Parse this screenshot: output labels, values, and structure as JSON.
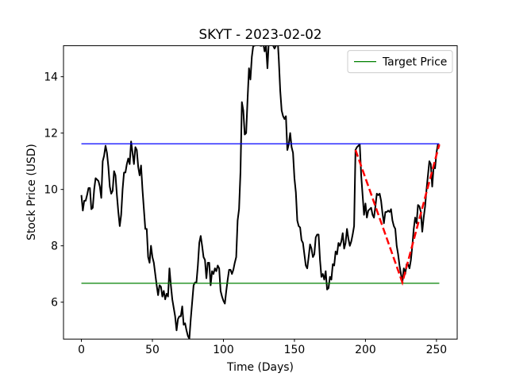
{
  "chart_data": {
    "type": "line",
    "title": "SKYT - 2023-02-02",
    "xlabel": "Time (Days)",
    "ylabel": "Stock Price (USD)",
    "x": [
      0,
      1,
      2,
      3,
      4,
      5,
      6,
      7,
      8,
      9,
      10,
      11,
      12,
      13,
      14,
      15,
      16,
      17,
      18,
      19,
      20,
      21,
      22,
      23,
      24,
      25,
      26,
      27,
      28,
      29,
      30,
      31,
      32,
      33,
      34,
      35,
      36,
      37,
      38,
      39,
      40,
      41,
      42,
      43,
      44,
      45,
      46,
      47,
      48,
      49,
      50,
      51,
      52,
      53,
      54,
      55,
      56,
      57,
      58,
      59,
      60,
      61,
      62,
      63,
      64,
      65,
      66,
      67,
      68,
      69,
      70,
      71,
      72,
      73,
      74,
      75,
      76,
      77,
      78,
      79,
      80,
      81,
      82,
      83,
      84,
      85,
      86,
      87,
      88,
      89,
      90,
      91,
      92,
      93,
      94,
      95,
      96,
      97,
      98,
      99,
      100,
      101,
      102,
      103,
      104,
      105,
      106,
      107,
      108,
      109,
      110,
      111,
      112,
      113,
      114,
      115,
      116,
      117,
      118,
      119,
      120,
      121,
      122,
      123,
      124,
      125,
      126,
      127,
      128,
      129,
      130,
      131,
      132,
      133,
      134,
      135,
      136,
      137,
      138,
      139,
      140,
      141,
      142,
      143,
      144,
      145,
      146,
      147,
      148,
      149,
      150,
      151,
      152,
      153,
      154,
      155,
      156,
      157,
      158,
      159,
      160,
      161,
      162,
      163,
      164,
      165,
      166,
      167,
      168,
      169,
      170,
      171,
      172,
      173,
      174,
      175,
      176,
      177,
      178,
      179,
      180,
      181,
      182,
      183,
      184,
      185,
      186,
      187,
      188,
      189,
      190,
      191,
      192,
      193,
      194,
      195,
      196,
      197,
      198,
      199,
      200,
      201,
      202,
      203,
      204,
      205,
      206,
      207,
      208,
      209,
      210,
      211,
      212,
      213,
      214,
      215,
      216,
      217,
      218,
      219,
      220,
      221,
      222,
      223,
      224,
      225,
      226,
      227,
      228,
      229,
      230,
      231,
      232,
      233,
      234,
      235,
      236,
      237,
      238,
      239,
      240,
      241,
      242,
      243,
      244,
      245,
      246,
      247,
      248,
      249,
      250,
      251,
      252
    ],
    "series": [
      {
        "color": "#000000",
        "values": [
          9.8,
          9.25,
          9.6,
          9.6,
          9.8,
          10.05,
          10.05,
          9.3,
          9.35,
          10.0,
          10.4,
          10.35,
          10.3,
          10.1,
          9.7,
          11.0,
          11.2,
          11.55,
          11.3,
          10.8,
          10.1,
          9.85,
          9.95,
          10.65,
          10.5,
          9.8,
          9.2,
          8.7,
          9.1,
          10.0,
          10.6,
          10.6,
          10.9,
          11.1,
          10.9,
          11.7,
          11.3,
          10.9,
          11.5,
          11.4,
          10.8,
          10.5,
          10.85,
          10.0,
          9.3,
          8.6,
          8.6,
          7.6,
          7.4,
          8.0,
          7.6,
          7.4,
          7.0,
          6.6,
          6.25,
          6.6,
          6.55,
          6.2,
          6.4,
          6.1,
          6.3,
          6.2,
          7.2,
          6.6,
          6.1,
          5.8,
          5.5,
          5.0,
          5.4,
          5.5,
          5.5,
          5.85,
          5.2,
          5.25,
          5.0,
          4.8,
          4.7,
          5.4,
          6.0,
          6.6,
          6.7,
          6.7,
          7.3,
          8.1,
          8.35,
          8.0,
          7.6,
          7.5,
          6.85,
          7.4,
          7.4,
          6.6,
          7.1,
          7.0,
          7.2,
          7.1,
          7.3,
          7.2,
          6.4,
          6.2,
          6.05,
          5.95,
          6.4,
          6.8,
          7.15,
          7.15,
          7.0,
          7.15,
          7.4,
          7.6,
          8.9,
          9.3,
          10.6,
          13.1,
          12.8,
          11.95,
          12.0,
          13.2,
          14.3,
          13.9,
          14.7,
          15.1,
          15.1,
          15.4,
          15.5,
          15.2,
          15.1,
          15.1,
          15.2,
          14.9,
          15.1,
          14.3,
          15.3,
          15.5,
          15.5,
          15.1,
          15.0,
          15.1,
          15.5,
          14.6,
          13.5,
          12.8,
          12.6,
          12.5,
          12.6,
          11.4,
          11.6,
          12.0,
          11.5,
          11.3,
          10.4,
          9.9,
          8.9,
          8.7,
          8.65,
          8.2,
          8.1,
          7.7,
          7.3,
          7.2,
          7.6,
          8.05,
          7.9,
          7.6,
          7.7,
          8.3,
          8.4,
          8.4,
          7.5,
          6.9,
          7.0,
          6.8,
          7.1,
          6.45,
          6.5,
          6.9,
          6.8,
          7.35,
          7.3,
          7.8,
          7.7,
          8.1,
          8.0,
          8.15,
          8.45,
          7.9,
          8.1,
          8.6,
          8.25,
          8.0,
          8.15,
          8.4,
          8.7,
          11.4,
          11.5,
          11.55,
          11.6,
          10.5,
          9.8,
          9.1,
          9.5,
          9.0,
          9.25,
          9.3,
          9.35,
          9.1,
          9.0,
          9.4,
          9.85,
          9.8,
          9.85,
          9.6,
          9.15,
          8.8,
          9.2,
          9.2,
          9.25,
          9.2,
          9.3,
          8.9,
          8.7,
          8.6,
          8.0,
          7.7,
          7.3,
          7.0,
          6.7,
          7.2,
          7.0,
          7.35,
          7.35,
          7.2,
          7.5,
          8.0,
          8.6,
          9.0,
          8.8,
          9.45,
          9.4,
          9.2,
          8.5,
          9.0,
          9.4,
          10.0,
          10.5,
          11.0,
          10.9,
          10.1,
          10.8,
          10.75,
          11.3,
          11.6,
          11.5
        ]
      }
    ],
    "hlines": [
      {
        "value": 11.62,
        "xmin": 0,
        "xmax": 252,
        "color": "#0000ff"
      },
      {
        "name": "Target Price",
        "value": 6.67,
        "xmin": 0,
        "xmax": 252,
        "color": "#008000"
      }
    ],
    "trend": {
      "x": [
        193,
        226,
        252
      ],
      "values": [
        11.4,
        6.7,
        11.6
      ],
      "color": "#ff0000",
      "dashed": true
    },
    "xlim": [
      -12.6,
      264.6
    ],
    "ylim": [
      4.69,
      15.1
    ],
    "xticks": [
      0,
      50,
      100,
      150,
      200,
      250
    ],
    "yticks": [
      6,
      8,
      10,
      12,
      14
    ],
    "legend": "upper right"
  }
}
